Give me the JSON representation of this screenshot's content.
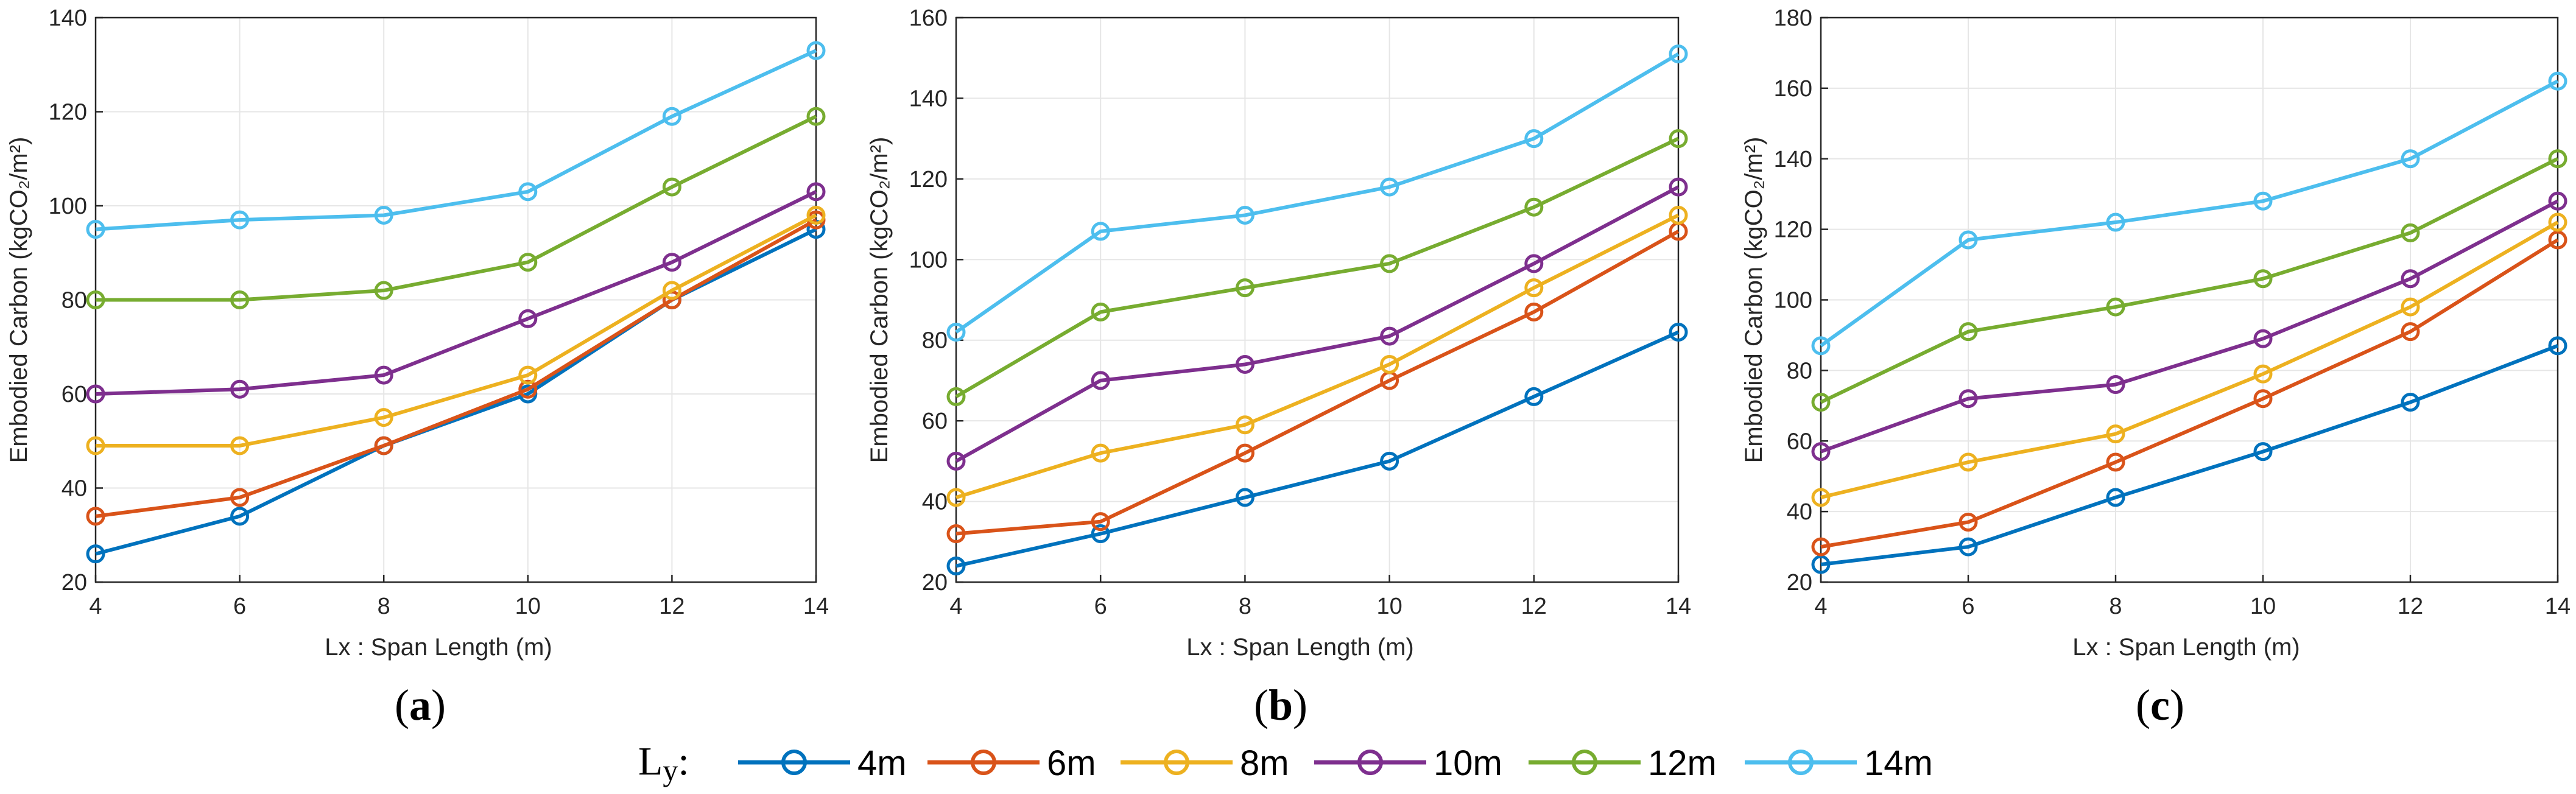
{
  "legend": {
    "title_main": "L",
    "title_sub": "y",
    "title_suffix": ":",
    "entries": [
      "4m",
      "6m",
      "8m",
      "10m",
      "12m",
      "14m"
    ]
  },
  "colors": [
    "#0072bd",
    "#d95319",
    "#edb120",
    "#7e2f8e",
    "#77ac30",
    "#4dbeee"
  ],
  "chart_data": [
    {
      "type": "line",
      "panel_label": {
        "open": "(",
        "letter": "a",
        "close": ")"
      },
      "xlabel": "Lx : Span Length (m)",
      "ylabel": "Embodied Carbon (kgCO₂/m²)",
      "x": [
        4,
        6,
        8,
        10,
        12,
        14
      ],
      "xlim": [
        4,
        14
      ],
      "xticks": [
        4,
        6,
        8,
        10,
        12,
        14
      ],
      "ylim": [
        20,
        140
      ],
      "yticks": [
        20,
        40,
        60,
        80,
        100,
        120,
        140
      ],
      "grid": true,
      "series": [
        {
          "name": "4m",
          "values": [
            26,
            34,
            49,
            60,
            80,
            95
          ]
        },
        {
          "name": "6m",
          "values": [
            34,
            38,
            49,
            61,
            80,
            97
          ]
        },
        {
          "name": "8m",
          "values": [
            49,
            49,
            55,
            64,
            82,
            98
          ]
        },
        {
          "name": "10m",
          "values": [
            60,
            61,
            64,
            76,
            88,
            103
          ]
        },
        {
          "name": "12m",
          "values": [
            80,
            80,
            82,
            88,
            104,
            119
          ]
        },
        {
          "name": "14m",
          "values": [
            95,
            97,
            98,
            103,
            119,
            133
          ]
        }
      ]
    },
    {
      "type": "line",
      "panel_label": {
        "open": "(",
        "letter": "b",
        "close": ")"
      },
      "xlabel": "Lx : Span Length (m)",
      "ylabel": "Embodied Carbon (kgCO₂/m²)",
      "x": [
        4,
        6,
        8,
        10,
        12,
        14
      ],
      "xlim": [
        4,
        14
      ],
      "xticks": [
        4,
        6,
        8,
        10,
        12,
        14
      ],
      "ylim": [
        20,
        160
      ],
      "yticks": [
        20,
        40,
        60,
        80,
        100,
        120,
        140,
        160
      ],
      "grid": true,
      "series": [
        {
          "name": "4m",
          "values": [
            24,
            32,
            41,
            50,
            66,
            82
          ]
        },
        {
          "name": "6m",
          "values": [
            32,
            35,
            52,
            70,
            87,
            107
          ]
        },
        {
          "name": "8m",
          "values": [
            41,
            52,
            59,
            74,
            93,
            111
          ]
        },
        {
          "name": "10m",
          "values": [
            50,
            70,
            74,
            81,
            99,
            118
          ]
        },
        {
          "name": "12m",
          "values": [
            66,
            87,
            93,
            99,
            113,
            130
          ]
        },
        {
          "name": "14m",
          "values": [
            82,
            107,
            111,
            118,
            130,
            151
          ]
        }
      ]
    },
    {
      "type": "line",
      "panel_label": {
        "open": "(",
        "letter": "c",
        "close": ")"
      },
      "xlabel": "Lx : Span Length (m)",
      "ylabel": "Embodied Carbon (kgCO₂/m²)",
      "x": [
        4,
        6,
        8,
        10,
        12,
        14
      ],
      "xlim": [
        4,
        14
      ],
      "xticks": [
        4,
        6,
        8,
        10,
        12,
        14
      ],
      "ylim": [
        20,
        180
      ],
      "yticks": [
        20,
        40,
        60,
        80,
        100,
        120,
        140,
        160,
        180
      ],
      "grid": true,
      "series": [
        {
          "name": "4m",
          "values": [
            25,
            30,
            44,
            57,
            71,
            87
          ]
        },
        {
          "name": "6m",
          "values": [
            30,
            37,
            54,
            72,
            91,
            117
          ]
        },
        {
          "name": "8m",
          "values": [
            44,
            54,
            62,
            79,
            98,
            122
          ]
        },
        {
          "name": "10m",
          "values": [
            57,
            72,
            76,
            89,
            106,
            128
          ]
        },
        {
          "name": "12m",
          "values": [
            71,
            91,
            98,
            106,
            119,
            140
          ]
        },
        {
          "name": "14m",
          "values": [
            87,
            117,
            122,
            128,
            140,
            162
          ]
        }
      ]
    }
  ]
}
